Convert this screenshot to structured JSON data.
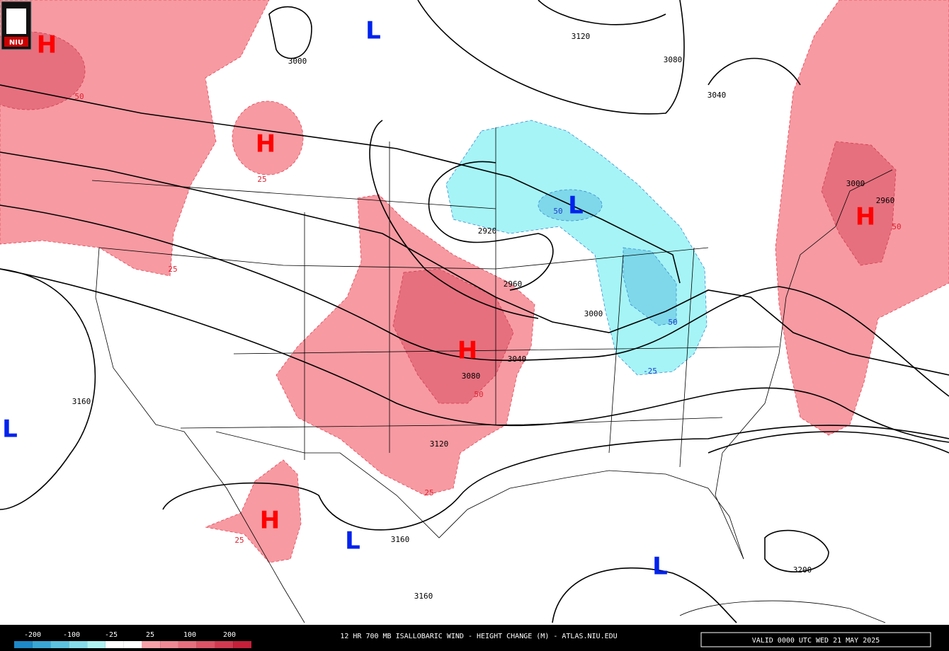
{
  "logo": "NIU",
  "centers": [
    "H",
    "H",
    "L",
    "L",
    "H",
    "H",
    "H",
    "L",
    "L",
    "L"
  ],
  "contour_labels": [
    3000,
    3120,
    3080,
    3040,
    3000,
    2960,
    2920,
    2960,
    3000,
    3040,
    3080,
    3120,
    3160,
    3160,
    3160,
    3200
  ],
  "change_labels": [
    "50",
    "25",
    "25",
    "50",
    "50",
    "25",
    "25",
    "50",
    "50",
    "-25"
  ],
  "legend": {
    "labels": [
      "-200",
      "-100",
      "-25",
      "25",
      "100",
      "200"
    ],
    "colors": [
      "#1e88c8",
      "#3aa6d6",
      "#5cc2e0",
      "#86dcea",
      "#aef2f2",
      "#ffffff",
      "#ffffff",
      "#f6a0a8",
      "#ef8a94",
      "#e6707e",
      "#dc5466",
      "#d03a50",
      "#c4203a"
    ]
  },
  "title": "12 HR 700 MB ISALLOBARIC WIND - HEIGHT CHANGE (M) - ATLAS.NIU.EDU",
  "valid": "VALID 0000 UTC WED 21 MAY 2025"
}
